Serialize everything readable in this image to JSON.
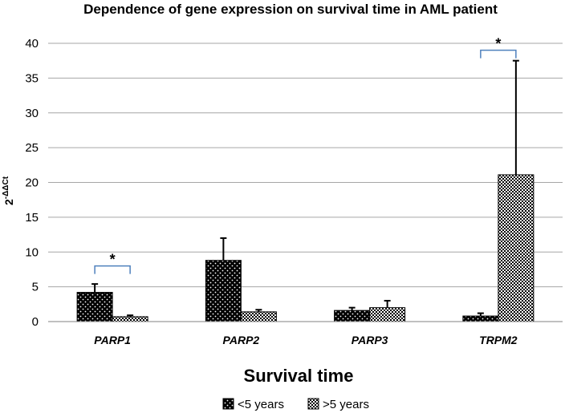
{
  "chart_data": {
    "type": "bar",
    "title": "Dependence of gene expression on survival time in AML patient",
    "xlabel": "Survival time",
    "ylabel_base": "2",
    "ylabel_exp": "-ΔΔCt",
    "ylim": [
      0,
      40
    ],
    "yticks": [
      0,
      5,
      10,
      15,
      20,
      25,
      30,
      35,
      40
    ],
    "categories": [
      "PARP1",
      "PARP2",
      "PARP3",
      "TRPM2"
    ],
    "series": [
      {
        "name": "<5 years",
        "values": [
          4.2,
          8.8,
          1.6,
          0.8
        ],
        "errors": [
          1.2,
          3.2,
          0.4,
          0.4
        ],
        "pattern": "dots-dark"
      },
      {
        "name": ">5 years",
        "values": [
          0.7,
          1.4,
          2.0,
          21.1
        ],
        "errors": [
          0.2,
          0.3,
          1.0,
          16.4
        ],
        "pattern": "checker-light"
      }
    ],
    "significance": [
      {
        "category": "PARP1",
        "label": "*",
        "y": 8
      },
      {
        "category": "TRPM2",
        "label": "*",
        "y": 39
      }
    ],
    "legend_position": "bottom"
  },
  "colors": {
    "bracket": "#4f81bd",
    "grid": "#a6a6a6",
    "axis": "#808080"
  }
}
